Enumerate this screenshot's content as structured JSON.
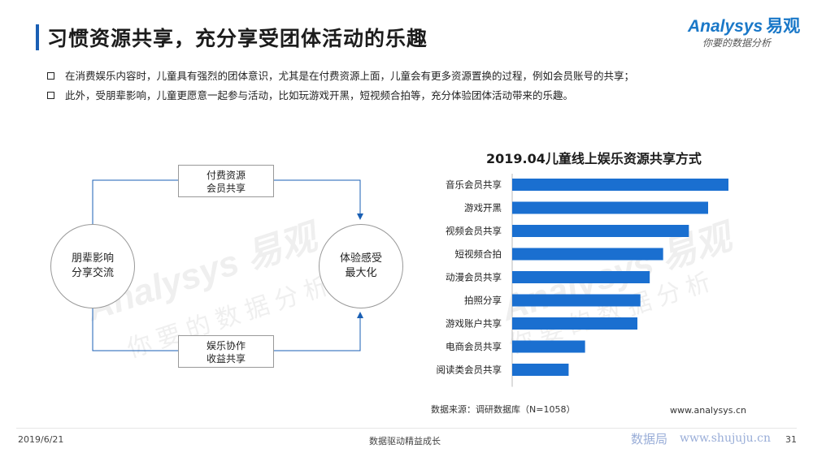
{
  "header": {
    "title": "习惯资源共享，充分享受团体活动的乐趣",
    "logo_en": "Analysys",
    "logo_cn": "易观",
    "logo_tagline": "你要的数据分析"
  },
  "bullets": [
    "在消费娱乐内容时，儿童具有强烈的团体意识，尤其是在付费资源上面，儿童会有更多资源置换的过程，例如会员账号的共享；",
    "此外，受朋辈影响，儿童更愿意一起参与活动，比如玩游戏开黑，短视频合拍等，充分体验团体活动带来的乐趣。"
  ],
  "diagram": {
    "left_node": [
      "朋辈影响",
      "分享交流"
    ],
    "right_node": [
      "体验感受",
      "最大化"
    ],
    "top_box": [
      "付费资源",
      "会员共享"
    ],
    "bottom_box": [
      "娱乐协作",
      "收益共享"
    ]
  },
  "watermark": {
    "en": "Analysys 易观",
    "cn": "你要的数据分析"
  },
  "chart_data": {
    "type": "bar",
    "orientation": "horizontal",
    "title": "2019.04儿童线上娱乐资源共享方式",
    "categories": [
      "音乐会员共享",
      "游戏开黑",
      "视频会员共享",
      "短视频合拍",
      "动漫会员共享",
      "拍照分享",
      "游戏账户共享",
      "电商会员共享",
      "阅读类会员共享"
    ],
    "values": [
      100,
      90.6,
      81.7,
      69.8,
      63.6,
      59.3,
      57.9,
      33.7,
      26.1
    ],
    "xlim": [
      0,
      100
    ],
    "bar_color": "#1a6fd0",
    "grid": false,
    "legend": "none"
  },
  "chart_labels": {
    "source": "数据来源：调研数据库（N=1058）",
    "site": "www.analysys.cn"
  },
  "footer": {
    "date": "2019/6/21",
    "slogan": "数据驱动精益成长",
    "page": "31",
    "shujuju_cn": "数据局",
    "shujuju_url": "www.shujuju.cn"
  }
}
